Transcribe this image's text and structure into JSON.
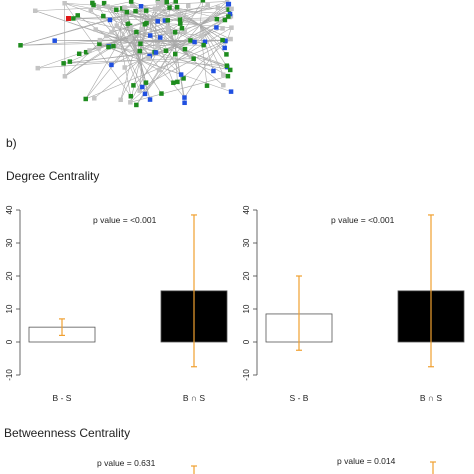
{
  "panel_label": "b)",
  "network": {
    "node_colors": {
      "green": "#1e8c1e",
      "blue": "#1f4fe0",
      "gray": "#c4c4c4",
      "red": "#e01818"
    },
    "edge_color": "#9a9a9a"
  },
  "sections": [
    {
      "title": "Degree Centrality"
    },
    {
      "title": "Betweenness Centrality"
    }
  ],
  "chart_data": [
    {
      "type": "bar",
      "section": "Degree Centrality",
      "categories": [
        "B - S",
        "B ∩ S"
      ],
      "values": [
        4.5,
        15.5
      ],
      "error_low": [
        2.0,
        -7.5
      ],
      "error_high": [
        7.0,
        38.5
      ],
      "bar_fills": [
        "#ffffff",
        "#000000"
      ],
      "error_color": "#f0a030",
      "annotation": "p value = <0.001",
      "yticks": [
        -10,
        0,
        10,
        20,
        30,
        40
      ],
      "ylim": [
        -12,
        42
      ],
      "grid": false
    },
    {
      "type": "bar",
      "section": "Degree Centrality",
      "categories": [
        "S - B",
        "B ∩ S"
      ],
      "values": [
        8.5,
        15.5
      ],
      "error_low": [
        -2.5,
        -7.5
      ],
      "error_high": [
        20.0,
        38.5
      ],
      "bar_fills": [
        "#ffffff",
        "#000000"
      ],
      "error_color": "#f0a030",
      "annotation": "p value = <0.001",
      "yticks": [
        -10,
        0,
        10,
        20,
        30,
        40
      ],
      "ylim": [
        -12,
        42
      ],
      "grid": false
    },
    {
      "type": "bar",
      "section": "Betweenness Centrality",
      "annotation": "p value = 0.631",
      "error_color": "#f0a030"
    },
    {
      "type": "bar",
      "section": "Betweenness Centrality",
      "annotation": "p value = 0.014",
      "error_color": "#f0a030"
    }
  ]
}
